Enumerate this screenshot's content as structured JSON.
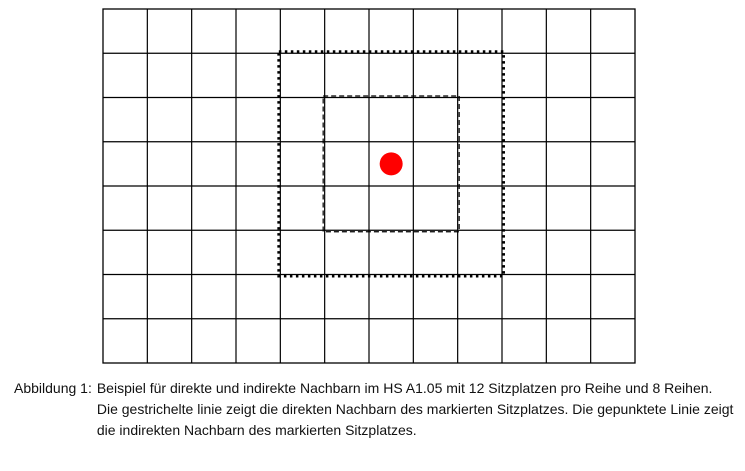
{
  "figure": {
    "rows": 8,
    "seats_per_row": 12,
    "selected_seat": {
      "row": 4,
      "seat": 7
    },
    "direct_neighbors": {
      "row_from": 3,
      "row_to": 5,
      "seat_from": 6,
      "seat_to": 8,
      "line_style": "dashed"
    },
    "indirect_neighbors": {
      "row_from": 2,
      "row_to": 6,
      "seat_from": 5,
      "seat_to": 9,
      "line_style": "dotted"
    },
    "marker_color": "#ff0000",
    "grid_color": "#000000"
  },
  "caption": {
    "label": "Abbildung 1:",
    "text": "Beispiel für direkte und indirekte Nachbarn im HS A1.05 mit 12 Sitzplatzen pro Reihe und 8 Reihen. Die gestrichelte linie zeigt die direkten Nachbarn des markierten Sitzplatzes. Die gepunktete Linie zeigt die indirekten Nachbarn des markierten Sitzplatzes."
  }
}
